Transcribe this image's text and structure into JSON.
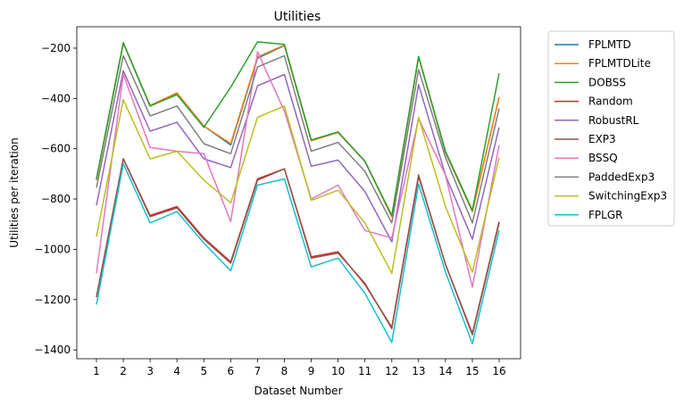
{
  "chart_data": {
    "type": "line",
    "title": "Utilities",
    "xlabel": "Dataset Number",
    "ylabel": "Utilities per iteration",
    "x": [
      1,
      2,
      3,
      4,
      5,
      6,
      7,
      8,
      9,
      10,
      11,
      12,
      13,
      14,
      15,
      16
    ],
    "ylim": [
      -1435,
      -115
    ],
    "yticks": [
      -200,
      -400,
      -600,
      -800,
      -1000,
      -1200,
      -1400
    ],
    "ytick_labels": [
      "−200",
      "−400",
      "−600",
      "−800",
      "−1000",
      "−1200",
      "−1400"
    ],
    "grid": false,
    "legend_position": "outside-right",
    "series": [
      {
        "name": "FPLMTD",
        "color": "#1f77b4",
        "values": [
          -725,
          -180,
          -430,
          -380,
          -510,
          -585,
          -240,
          -190,
          -568,
          -535,
          -650,
          -870,
          -235,
          -615,
          -850,
          -395
        ]
      },
      {
        "name": "FPLMTDLite",
        "color": "#ff7f0e",
        "values": [
          -725,
          -180,
          -428,
          -378,
          -510,
          -580,
          -235,
          -188,
          -568,
          -535,
          -650,
          -870,
          -235,
          -613,
          -850,
          -395
        ]
      },
      {
        "name": "DOBSS",
        "color": "#2ca02c",
        "values": [
          -720,
          -178,
          -430,
          -385,
          -515,
          -355,
          -175,
          -185,
          -565,
          -533,
          -650,
          -865,
          -233,
          -610,
          -845,
          -300
        ]
      },
      {
        "name": "Random",
        "color": "#d62728",
        "values": [
          -1190,
          -640,
          -865,
          -830,
          -955,
          -1050,
          -720,
          -680,
          -1030,
          -1010,
          -1140,
          -1310,
          -705,
          -1060,
          -1335,
          -890
        ]
      },
      {
        "name": "RobustRL",
        "color": "#9467bd",
        "values": [
          -825,
          -290,
          -530,
          -495,
          -640,
          -675,
          -350,
          -305,
          -670,
          -645,
          -770,
          -970,
          -345,
          -705,
          -960,
          -515
        ]
      },
      {
        "name": "EXP3",
        "color": "#8c564b",
        "values": [
          -1190,
          -640,
          -870,
          -835,
          -960,
          -1055,
          -725,
          -680,
          -1035,
          -1015,
          -1135,
          -1315,
          -710,
          -1060,
          -1340,
          -895
        ]
      },
      {
        "name": "BSSQ",
        "color": "#e377c2",
        "values": [
          -1095,
          -305,
          -595,
          -610,
          -620,
          -890,
          -215,
          -450,
          -800,
          -745,
          -925,
          -955,
          -480,
          -705,
          -1150,
          -585
        ]
      },
      {
        "name": "PaddedExp3",
        "color": "#7f7f7f",
        "values": [
          -755,
          -230,
          -470,
          -430,
          -580,
          -620,
          -275,
          -230,
          -610,
          -575,
          -690,
          -895,
          -285,
          -635,
          -895,
          -440
        ]
      },
      {
        "name": "SwitchingExp3",
        "color": "#bcbd22",
        "values": [
          -950,
          -405,
          -640,
          -610,
          -725,
          -815,
          -475,
          -430,
          -805,
          -765,
          -895,
          -1095,
          -475,
          -830,
          -1090,
          -635
        ]
      },
      {
        "name": "FPLGR",
        "color": "#17becf",
        "values": [
          -1220,
          -660,
          -895,
          -850,
          -975,
          -1085,
          -745,
          -720,
          -1070,
          -1035,
          -1175,
          -1370,
          -740,
          -1090,
          -1375,
          -925
        ]
      }
    ]
  }
}
